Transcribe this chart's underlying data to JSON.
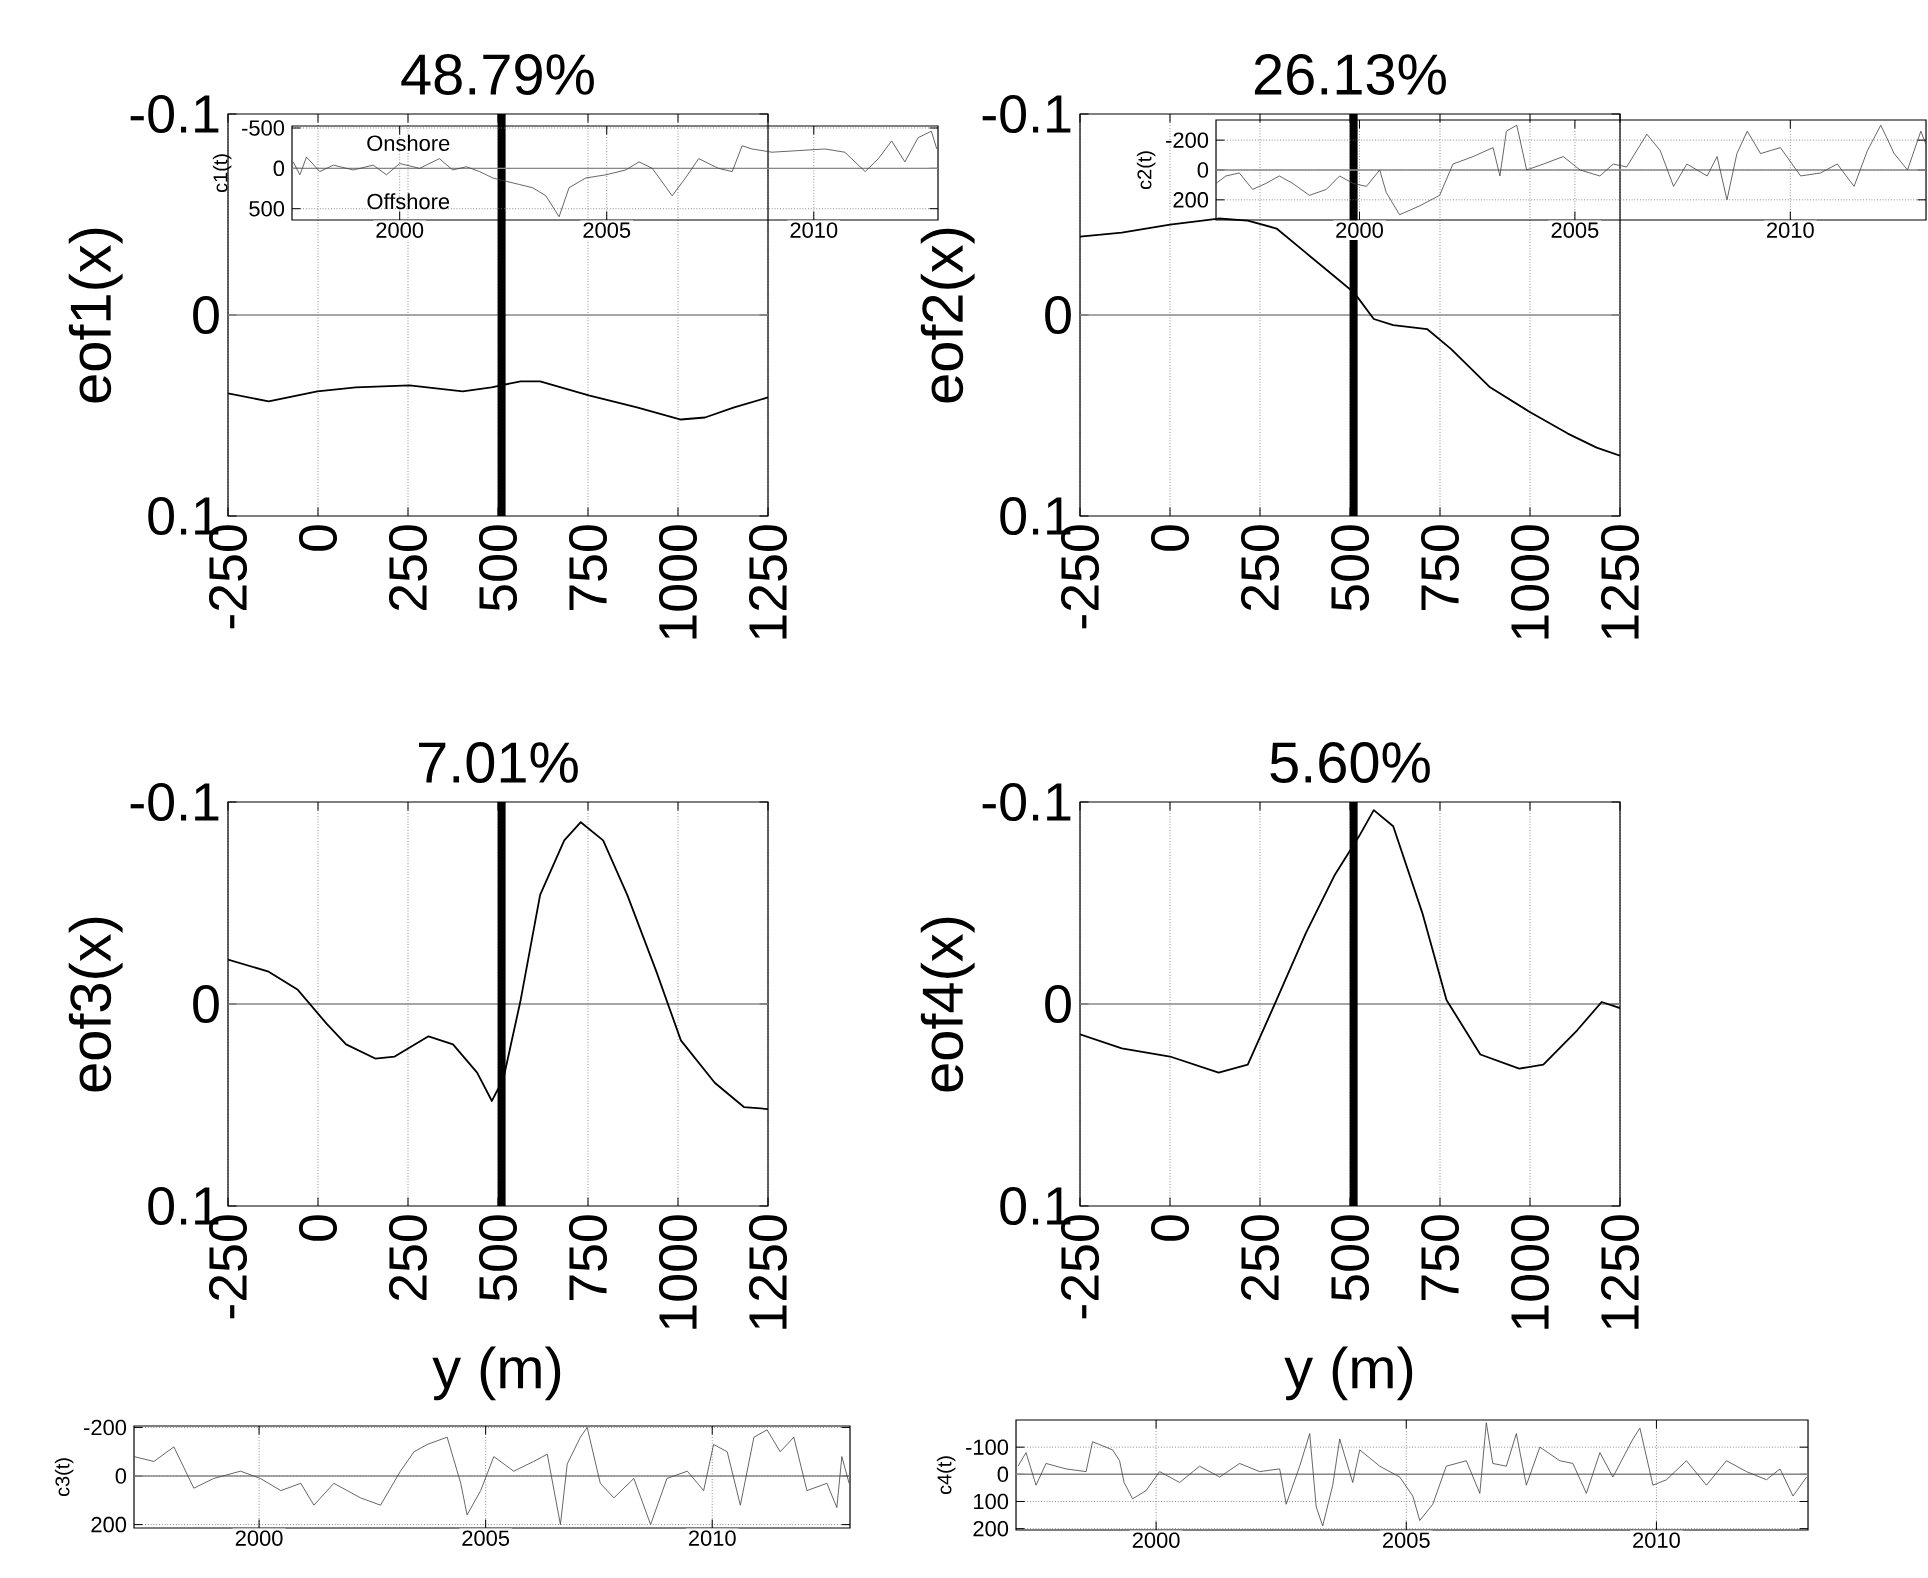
{
  "chart_data": [
    {
      "type": "line",
      "title": "48.79%",
      "ylabel": "eof1(x)",
      "color": "#000000",
      "marker": "none",
      "grid": "x",
      "xlim": [
        -250,
        1250
      ],
      "ylim": [
        0.1,
        -0.1
      ],
      "xticks": [
        -250,
        0,
        250,
        500,
        750,
        1000,
        1250
      ],
      "yticks": [
        -0.1,
        0,
        0.1
      ],
      "x": [
        -250,
        -137,
        -2,
        105,
        254,
        402,
        482,
        563,
        617,
        752,
        886,
        1008,
        1075,
        1156,
        1250
      ],
      "values": [
        0.039,
        0.043,
        0.038,
        0.036,
        0.035,
        0.038,
        0.036,
        0.033,
        0.033,
        0.04,
        0.046,
        0.052,
        0.051,
        0.046,
        0.041
      ],
      "ref_lines": [
        {
          "axis": "y",
          "value": 0,
          "color": "#888888"
        },
        {
          "axis": "x",
          "value": 510,
          "color": "#000000"
        }
      ]
    },
    {
      "type": "line",
      "ylabel": "c1(t)",
      "color": "#404040",
      "marker": "none",
      "grid": true,
      "xlim": [
        1997.4,
        2013.0
      ],
      "ylim": [
        640,
        -525
      ],
      "xticks": [
        2000,
        2005,
        2010
      ],
      "yticks": [
        -500,
        0,
        500
      ],
      "x": [
        1997.43,
        1997.59,
        1997.75,
        1998.07,
        1998.4,
        1998.88,
        1999.36,
        1999.68,
        2000.0,
        2000.48,
        2000.96,
        2001.28,
        2001.61,
        2001.93,
        2002.25,
        2002.57,
        2002.89,
        2003.21,
        2003.53,
        2003.85,
        2004.09,
        2004.49,
        2004.98,
        2005.46,
        2005.78,
        2006.1,
        2006.58,
        2006.9,
        2007.22,
        2007.7,
        2008.03,
        2008.27,
        2008.51,
        2008.99,
        2009.63,
        2010.27,
        2010.75,
        2011.24,
        2011.56,
        2011.88,
        2012.2,
        2012.52,
        2012.84,
        2012.97
      ],
      "values": [
        -80,
        80,
        -140,
        40,
        -40,
        20,
        -40,
        80,
        -60,
        0,
        -120,
        20,
        -20,
        40,
        120,
        160,
        200,
        240,
        340,
        600,
        240,
        120,
        80,
        20,
        -80,
        0,
        340,
        120,
        -120,
        0,
        40,
        -280,
        -240,
        -200,
        -220,
        -240,
        -200,
        40,
        -120,
        -340,
        -80,
        -380,
        -460,
        -240
      ],
      "ref_lines": [
        {
          "axis": "y",
          "value": 0,
          "color": "#888888"
        }
      ],
      "annotations": [
        "Onshore",
        "Offshore"
      ]
    },
    {
      "type": "line",
      "title": "26.13%",
      "ylabel": "eof2(x)",
      "color": "#000000",
      "marker": "none",
      "grid": "x",
      "xlim": [
        -250,
        1250
      ],
      "ylim": [
        0.1,
        -0.1
      ],
      "xticks": [
        -250,
        0,
        250,
        500,
        750,
        1000,
        1250
      ],
      "yticks": [
        -0.1,
        0,
        0.1
      ],
      "x": [
        -250,
        -134,
        0,
        135,
        216,
        296,
        377,
        458,
        512,
        566,
        620,
        714,
        781,
        889,
        997,
        1105,
        1185,
        1250
      ],
      "values": [
        -0.039,
        -0.041,
        -0.045,
        -0.048,
        -0.047,
        -0.043,
        -0.031,
        -0.019,
        -0.011,
        0.002,
        0.005,
        0.007,
        0.017,
        0.036,
        0.048,
        0.059,
        0.066,
        0.07
      ],
      "ref_lines": [
        {
          "axis": "y",
          "value": 0,
          "color": "#888888"
        },
        {
          "axis": "x",
          "value": 510,
          "color": "#000000"
        }
      ]
    },
    {
      "type": "line",
      "ylabel": "c2(t)",
      "color": "#404040",
      "marker": "none",
      "grid": true,
      "xlim": [
        1996.67,
        2013.15
      ],
      "ylim": [
        335,
        -335
      ],
      "xticks": [
        2000,
        2005,
        2010
      ],
      "yticks": [
        -200,
        0,
        200
      ],
      "x": [
        1996.67,
        1996.9,
        1997.21,
        1997.52,
        1997.83,
        1998.14,
        1998.45,
        1998.84,
        1999.23,
        1999.54,
        1999.85,
        2000.16,
        2000.47,
        2000.62,
        2000.93,
        2001.4,
        2001.86,
        2002.17,
        2002.64,
        2003.1,
        2003.26,
        2003.41,
        2003.65,
        2003.88,
        2004.27,
        2004.73,
        2005.12,
        2005.58,
        2005.89,
        2006.2,
        2006.67,
        2006.98,
        2007.29,
        2007.6,
        2008.07,
        2008.3,
        2008.53,
        2008.76,
        2009.0,
        2009.31,
        2009.77,
        2010.24,
        2010.7,
        2011.09,
        2011.48,
        2011.79,
        2012.1,
        2012.41,
        2012.72,
        2013.03,
        2013.15
      ],
      "values": [
        90,
        40,
        20,
        130,
        90,
        40,
        90,
        170,
        130,
        40,
        90,
        110,
        0,
        150,
        300,
        240,
        170,
        -40,
        -90,
        -150,
        40,
        -260,
        -300,
        0,
        -40,
        -90,
        0,
        40,
        -40,
        -20,
        -240,
        -130,
        110,
        -40,
        40,
        -90,
        200,
        -110,
        -260,
        -110,
        -150,
        40,
        20,
        -40,
        110,
        -130,
        -300,
        -110,
        0,
        -260,
        -170
      ],
      "ref_lines": [
        {
          "axis": "y",
          "value": 0,
          "color": "#888888"
        }
      ]
    },
    {
      "type": "line",
      "title": "7.01%",
      "xlabel": "y (m)",
      "ylabel": "eof3(x)",
      "color": "#000000",
      "marker": "none",
      "grid": "x",
      "xlim": [
        -250,
        1250
      ],
      "ylim": [
        0.1,
        -0.1
      ],
      "xticks": [
        -250,
        0,
        250,
        500,
        750,
        1000,
        1250
      ],
      "yticks": [
        -0.1,
        0,
        0.1
      ],
      "x": [
        -250,
        -137,
        -56,
        25,
        78,
        159,
        213,
        307,
        375,
        442,
        483,
        515,
        563,
        617,
        684,
        730,
        792,
        859,
        940,
        1008,
        1102,
        1183,
        1250
      ],
      "values": [
        -0.022,
        -0.016,
        -0.007,
        0.01,
        0.02,
        0.027,
        0.026,
        0.016,
        0.02,
        0.034,
        0.048,
        0.037,
        -0.002,
        -0.054,
        -0.081,
        -0.09,
        -0.081,
        -0.054,
        -0.016,
        0.018,
        0.039,
        0.051,
        0.052
      ],
      "ref_lines": [
        {
          "axis": "y",
          "value": 0,
          "color": "#888888"
        },
        {
          "axis": "x",
          "value": 510,
          "color": "#000000"
        }
      ]
    },
    {
      "type": "line",
      "title": "5.60%",
      "xlabel": "y (m)",
      "ylabel": "eof4(x)",
      "color": "#000000",
      "marker": "none",
      "grid": "x",
      "xlim": [
        -250,
        1250
      ],
      "ylim": [
        0.1,
        -0.1
      ],
      "xticks": [
        -250,
        0,
        250,
        500,
        750,
        1000,
        1250
      ],
      "yticks": [
        -0.1,
        0,
        0.1
      ],
      "x": [
        -250,
        -134,
        0,
        135,
        216,
        296,
        377,
        458,
        525,
        566,
        620,
        701,
        768,
        862,
        970,
        1037,
        1131,
        1199,
        1250
      ],
      "values": [
        0.015,
        0.022,
        0.026,
        0.034,
        0.03,
        -0.002,
        -0.035,
        -0.064,
        -0.083,
        -0.096,
        -0.088,
        -0.045,
        -0.002,
        0.025,
        0.032,
        0.03,
        0.013,
        -0.001,
        0.002
      ],
      "ref_lines": [
        {
          "axis": "y",
          "value": 0,
          "color": "#888888"
        },
        {
          "axis": "x",
          "value": 510,
          "color": "#000000"
        }
      ]
    },
    {
      "type": "line",
      "ylabel": "c3(t)",
      "color": "#404040",
      "marker": "none",
      "grid": true,
      "xlim": [
        1997.24,
        2013.04
      ],
      "ylim": [
        214,
        -206
      ],
      "xticks": [
        2000,
        2005,
        2010
      ],
      "yticks": [
        -200,
        0,
        200
      ],
      "x": [
        1997.24,
        1997.68,
        1998.12,
        1998.56,
        1999.0,
        1999.59,
        2000.03,
        2000.48,
        2000.92,
        2001.21,
        2001.65,
        2002.24,
        2002.68,
        2003.12,
        2003.42,
        2003.71,
        2004.15,
        2004.45,
        2004.59,
        2004.89,
        2005.18,
        2005.62,
        2006.06,
        2006.36,
        2006.65,
        2006.8,
        2007.09,
        2007.24,
        2007.53,
        2007.83,
        2008.27,
        2008.64,
        2009.0,
        2009.45,
        2009.81,
        2010.03,
        2010.33,
        2010.62,
        2010.92,
        2011.21,
        2011.5,
        2011.8,
        2012.09,
        2012.53,
        2012.75,
        2012.86,
        2013.02
      ],
      "values": [
        -80,
        -60,
        -120,
        50,
        10,
        -20,
        10,
        60,
        30,
        120,
        30,
        90,
        120,
        -20,
        -100,
        -130,
        -160,
        30,
        160,
        60,
        -80,
        -20,
        -60,
        -90,
        200,
        -50,
        -160,
        -200,
        30,
        90,
        10,
        200,
        10,
        -20,
        60,
        -130,
        -100,
        120,
        -160,
        -190,
        -100,
        -160,
        60,
        30,
        130,
        -80,
        30
      ],
      "ref_lines": [
        {
          "axis": "y",
          "value": 0,
          "color": "#888888"
        }
      ]
    },
    {
      "type": "line",
      "ylabel": "c4(t)",
      "color": "#404040",
      "marker": "none",
      "grid": true,
      "xlim": [
        1997.2,
        2013.03
      ],
      "ylim": [
        205,
        -200
      ],
      "xticks": [
        2000,
        2005,
        2010
      ],
      "yticks": [
        -100,
        0,
        100,
        200
      ],
      "x": [
        1997.24,
        1997.4,
        1997.6,
        1997.8,
        1998.2,
        1998.6,
        1998.73,
        1999.13,
        1999.27,
        1999.36,
        1999.53,
        1999.8,
        2000.07,
        2000.47,
        2000.87,
        2001.27,
        2001.67,
        2002.07,
        2002.47,
        2002.6,
        2002.87,
        2003.07,
        2003.2,
        2003.33,
        2003.53,
        2003.67,
        2003.93,
        2004.07,
        2004.47,
        2004.87,
        2005.13,
        2005.27,
        2005.53,
        2005.8,
        2006.2,
        2006.47,
        2006.6,
        2006.73,
        2007.0,
        2007.2,
        2007.4,
        2007.67,
        2008.07,
        2008.33,
        2008.6,
        2008.87,
        2009.13,
        2009.53,
        2009.67,
        2009.93,
        2010.2,
        2010.6,
        2011.0,
        2011.4,
        2011.8,
        2012.2,
        2012.47,
        2012.73,
        2013.0
      ],
      "values": [
        -30,
        -80,
        40,
        -40,
        -20,
        -10,
        -120,
        -90,
        -50,
        30,
        90,
        60,
        -10,
        30,
        -30,
        10,
        -40,
        -10,
        -20,
        110,
        -30,
        -150,
        120,
        190,
        40,
        -130,
        30,
        -90,
        -30,
        10,
        80,
        170,
        110,
        -30,
        -50,
        70,
        -190,
        -40,
        -30,
        -150,
        40,
        -100,
        -50,
        -40,
        70,
        -80,
        10,
        -130,
        -170,
        40,
        20,
        -50,
        40,
        -50,
        -10,
        20,
        -20,
        80,
        10
      ],
      "ref_lines": [
        {
          "axis": "y",
          "value": 0,
          "color": "#888888"
        }
      ]
    }
  ]
}
